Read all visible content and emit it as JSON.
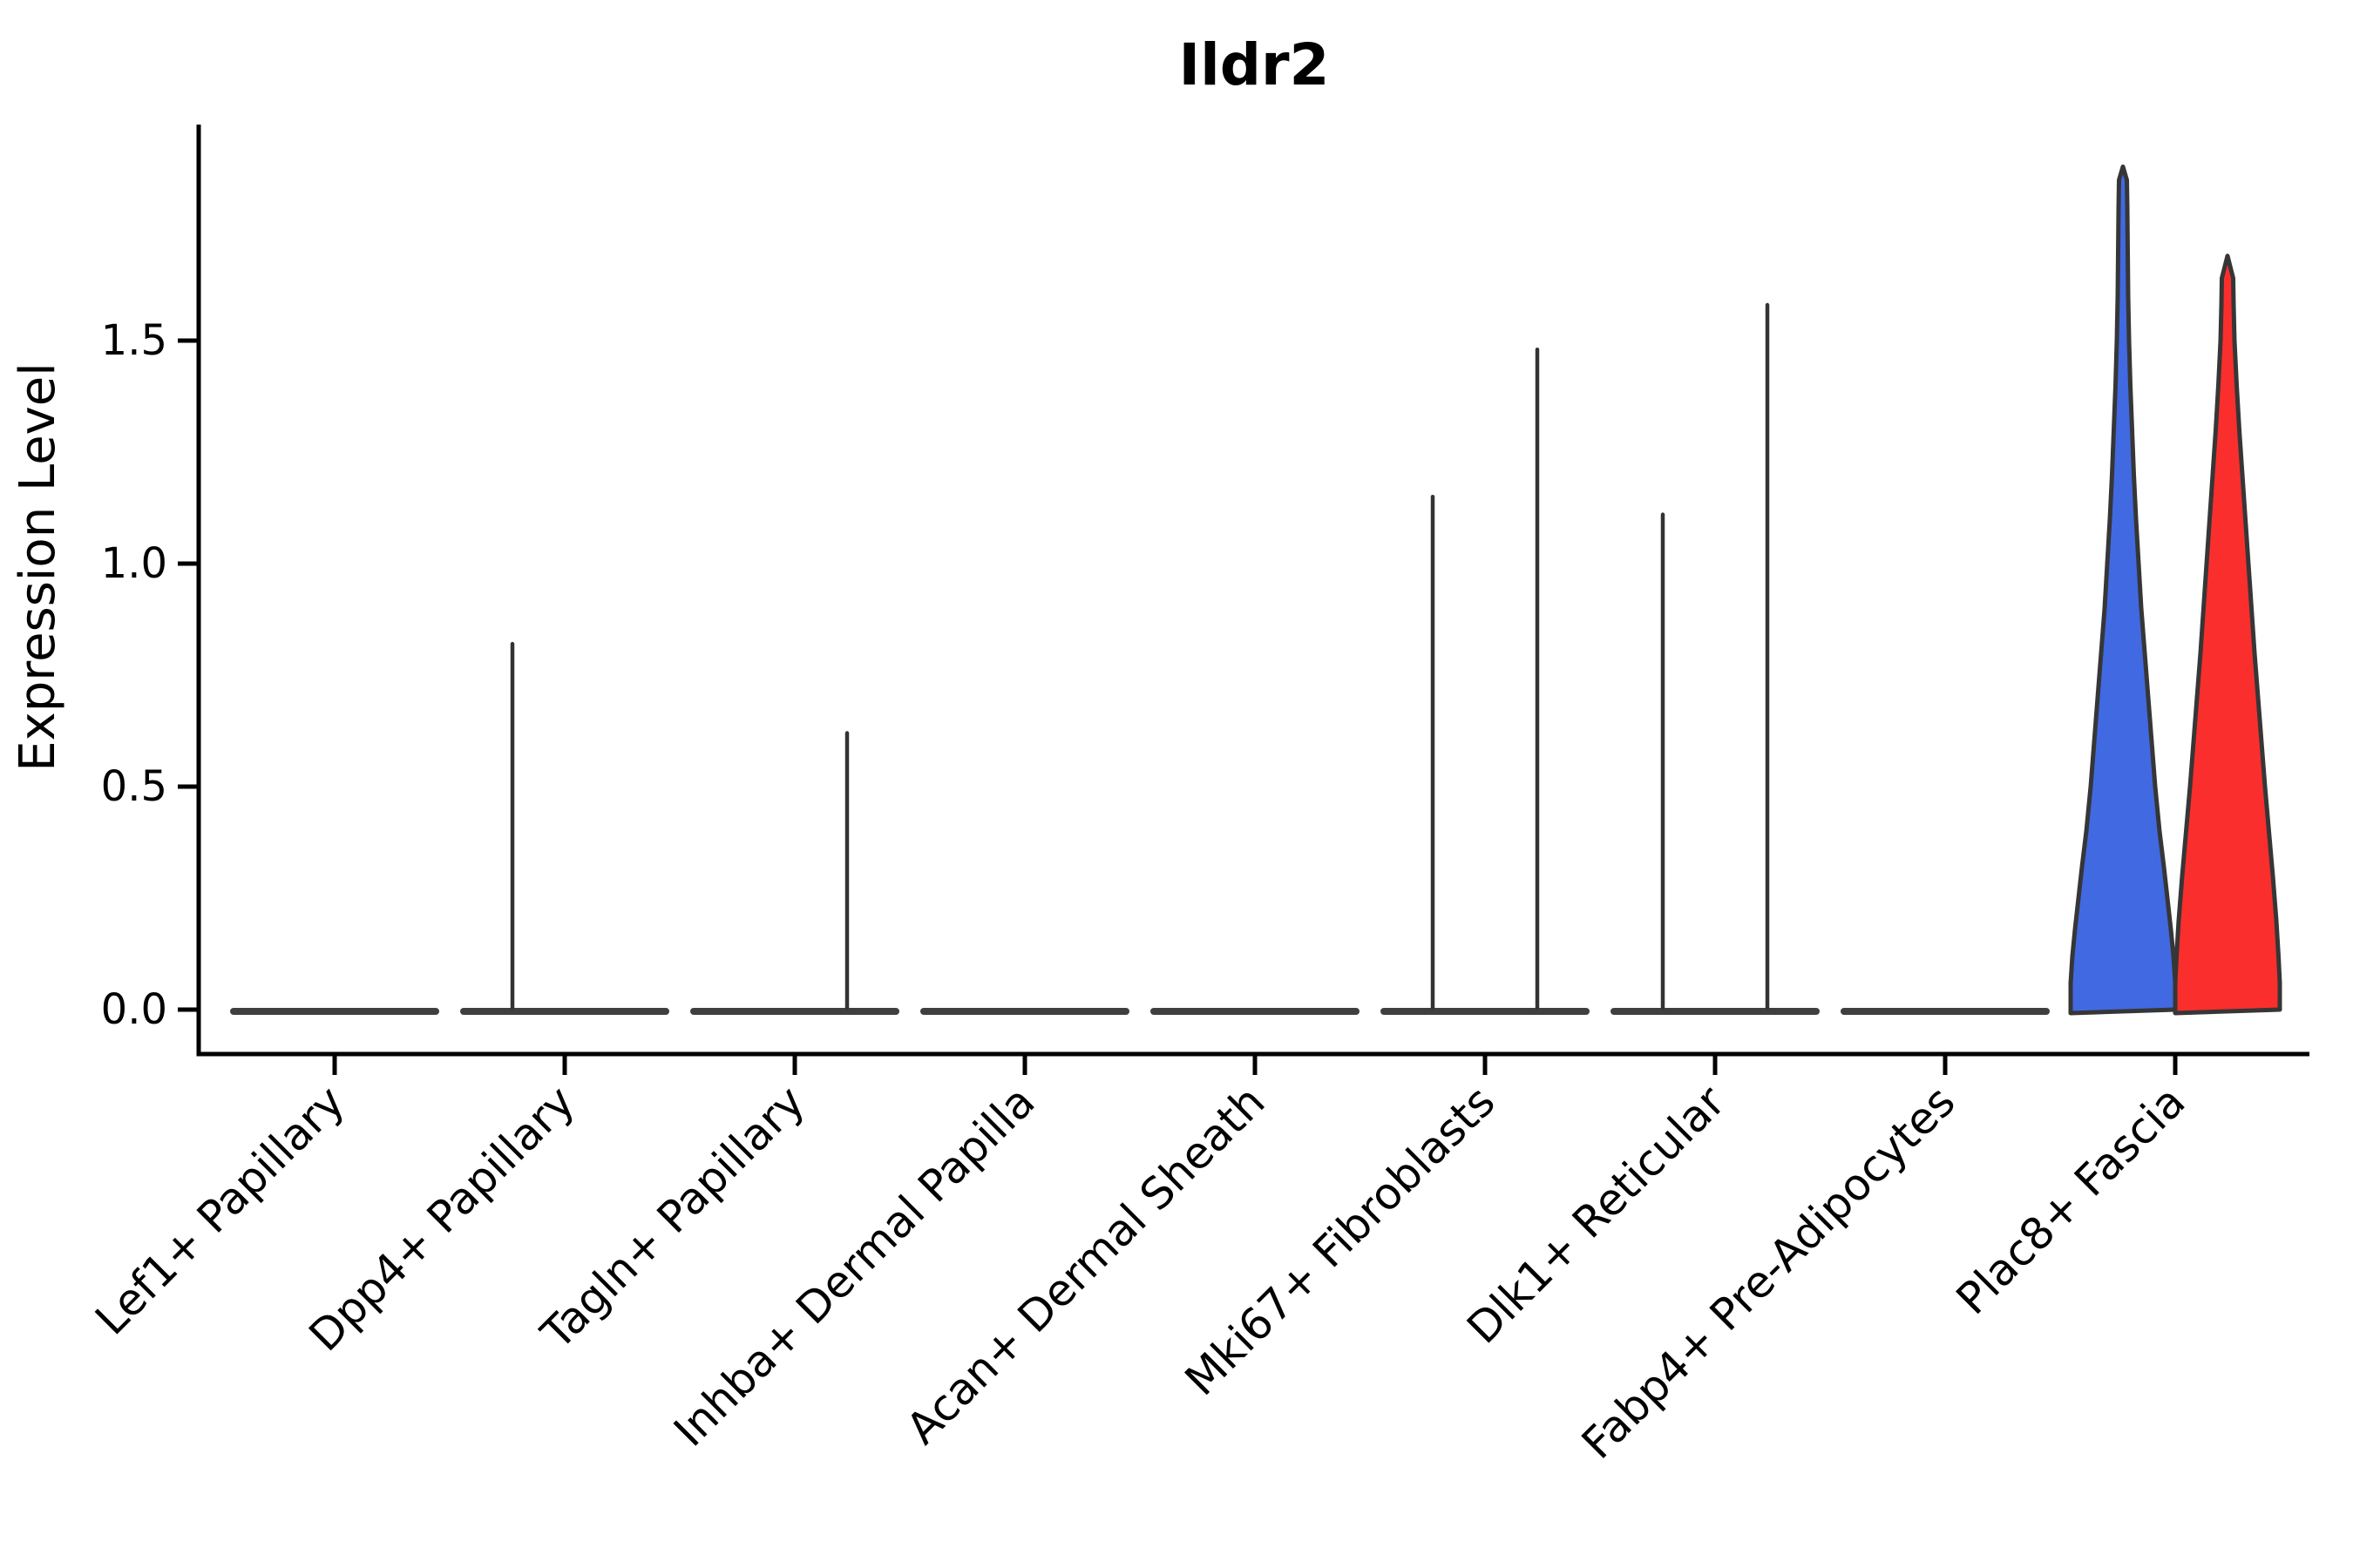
{
  "title": "Ildr2",
  "y_axis": {
    "label": "Expression Level",
    "tick_labels": [
      "0.0",
      "0.5",
      "1.0",
      "1.5"
    ]
  },
  "x_axis": {
    "tick_labels": [
      "Lef1+ Papillary",
      "Dpp4+ Papillary",
      "Tagln+ Papillary",
      "Inhba+ Dermal Papilla",
      "Acan+ Dermal Sheath",
      "Mki67+ Fibroblasts",
      "Dlk1+ Reticular",
      "Fabp4+ Pre-Adipocytes",
      "Plac8+ Fascia"
    ],
    "label_rotation_deg": 45
  },
  "colors": {
    "blue_violin": "#4169E1",
    "red_violin": "#FB2E2E",
    "outline": "#363636",
    "flat_line": "#3F3F3F",
    "spike": "#333333",
    "axis": "#000000",
    "background": "#FFFFFF"
  },
  "chart_data": {
    "type": "violin",
    "title": "Ildr2",
    "xlabel": "",
    "ylabel": "Expression Level",
    "ylim": [
      -0.06,
      1.98
    ],
    "yticks": [
      0.0,
      0.5,
      1.0,
      1.5
    ],
    "grid": false,
    "legend_position": "none",
    "categories": [
      "Lef1+ Papillary",
      "Dpp4+ Papillary",
      "Tagln+ Papillary",
      "Inhba+ Dermal Papilla",
      "Acan+ Dermal Sheath",
      "Mki67+ Fibroblasts",
      "Dlk1+ Reticular",
      "Fabp4+ Pre-Adipocytes",
      "Plac8+ Fascia"
    ],
    "series": [
      {
        "name": "left-group-blue",
        "color": "#4169E1",
        "max_expression": [
          0,
          0.82,
          0,
          0,
          0,
          1.15,
          1.11,
          0,
          1.89
        ],
        "shape": [
          "flat",
          "spike",
          "flat",
          "flat",
          "flat",
          "spike",
          "spike",
          "flat",
          "violin"
        ]
      },
      {
        "name": "right-group-red",
        "color": "#FB2E2E",
        "max_expression": [
          0,
          0,
          0.62,
          0,
          0,
          1.48,
          1.58,
          0,
          1.69
        ],
        "shape": [
          "flat",
          "flat",
          "spike",
          "flat",
          "flat",
          "spike",
          "spike",
          "flat",
          "violin"
        ]
      }
    ],
    "violin_profiles": {
      "left": {
        "max": 1.89,
        "points": [
          [
            0.0,
            60
          ],
          [
            0.06,
            60
          ],
          [
            0.12,
            58
          ],
          [
            0.18,
            55
          ],
          [
            0.25,
            51
          ],
          [
            0.32,
            47
          ],
          [
            0.4,
            42
          ],
          [
            0.5,
            37
          ],
          [
            0.6,
            33
          ],
          [
            0.7,
            29
          ],
          [
            0.8,
            25
          ],
          [
            0.9,
            21
          ],
          [
            1.0,
            18
          ],
          [
            1.1,
            15
          ],
          [
            1.2,
            12.5
          ],
          [
            1.3,
            10.5
          ],
          [
            1.4,
            8.5
          ],
          [
            1.5,
            7
          ],
          [
            1.6,
            6
          ],
          [
            1.7,
            5.5
          ],
          [
            1.8,
            5
          ],
          [
            1.86,
            4.5
          ],
          [
            1.89,
            0
          ]
        ]
      },
      "right": {
        "max": 1.69,
        "points": [
          [
            0.0,
            60
          ],
          [
            0.06,
            60
          ],
          [
            0.12,
            58.5
          ],
          [
            0.2,
            56
          ],
          [
            0.3,
            52
          ],
          [
            0.4,
            47.5
          ],
          [
            0.5,
            43
          ],
          [
            0.6,
            39
          ],
          [
            0.7,
            35
          ],
          [
            0.8,
            31
          ],
          [
            0.9,
            27.5
          ],
          [
            1.0,
            24
          ],
          [
            1.1,
            20.5
          ],
          [
            1.2,
            17
          ],
          [
            1.3,
            13.5
          ],
          [
            1.4,
            10.5
          ],
          [
            1.5,
            8
          ],
          [
            1.58,
            7
          ],
          [
            1.64,
            6.5
          ],
          [
            1.69,
            0
          ]
        ]
      }
    }
  }
}
